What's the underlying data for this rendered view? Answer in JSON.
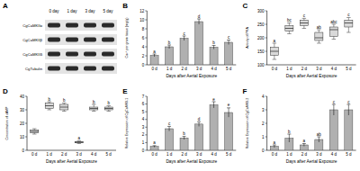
{
  "chart_data": [
    {
      "type": "blot",
      "title": "A",
      "lanes": [
        "0 day",
        "1 day",
        "3 day",
        "5 day"
      ],
      "rows": [
        "CgCaMKIIα",
        "CgCaMKIIβ",
        "CgCaMKIIδ",
        "CgTubulin"
      ]
    },
    {
      "type": "bar",
      "title": "B",
      "x_label": "Days after Aerial Exposure",
      "y_label": "Ca²⁺ per gram tissue (mg/g)",
      "categories": [
        "0 d",
        "1 d",
        "2 d",
        "3 d",
        "4 d",
        "5 d"
      ],
      "values": [
        2.1,
        4.0,
        5.9,
        9.6,
        3.9,
        5.0
      ],
      "errors": [
        0.3,
        0.4,
        0.5,
        0.6,
        0.4,
        0.5
      ],
      "letters": [
        "a",
        "b",
        "c",
        "d",
        "b",
        "c"
      ],
      "color": "#b0b0b0",
      "ylim": [
        0,
        12
      ],
      "yticks": [
        0,
        2,
        4,
        6,
        8,
        10,
        12
      ]
    },
    {
      "type": "box",
      "title": "C",
      "x_label": "Days after Aerial Exposure",
      "y_label": "Activity of PKA",
      "categories": [
        "0 d",
        "1 d",
        "2 d",
        "3 d",
        "4 d",
        "5 d"
      ],
      "stats": [
        [
          120,
          135,
          150,
          165,
          180
        ],
        [
          215,
          225,
          235,
          245,
          255
        ],
        [
          235,
          245,
          255,
          265,
          272
        ],
        [
          180,
          190,
          200,
          220,
          230
        ],
        [
          195,
          205,
          230,
          240,
          250
        ],
        [
          220,
          240,
          255,
          265,
          275
        ]
      ],
      "letters": [
        "a",
        "bc",
        "c",
        "ab",
        "abc",
        "c"
      ],
      "color": "#d9d9d9",
      "ylim": [
        100,
        300
      ],
      "yticks": [
        100,
        150,
        200,
        250,
        300
      ]
    },
    {
      "type": "box",
      "title": "D",
      "x_label": "Days after Aerial Exposure",
      "y_label": "Concentration of cAMP",
      "categories": [
        "0 d",
        "1 d",
        "2 d",
        "3 d",
        "4 d",
        "5 d"
      ],
      "stats": [
        [
          12,
          13,
          14,
          15,
          16
        ],
        [
          30,
          31,
          33,
          35,
          36
        ],
        [
          29,
          30,
          32,
          34,
          35
        ],
        [
          5,
          5.5,
          6,
          6.5,
          7
        ],
        [
          29,
          30,
          31,
          32,
          34
        ],
        [
          29,
          30,
          31,
          32,
          33
        ]
      ],
      "letters": [
        null,
        "b",
        "b",
        "a",
        "b",
        "b"
      ],
      "color": "#d9d9d9",
      "ylim": [
        0,
        40
      ],
      "yticks": [
        0,
        10,
        20,
        30,
        40
      ]
    },
    {
      "type": "bar",
      "title": "E",
      "x_label": "Days after Aerial Exposure",
      "y_label": "Relative Expression of CgCaMKII-1",
      "categories": [
        "0 d",
        "1 d",
        "2 d",
        "3 d",
        "4 d",
        "5 d"
      ],
      "values": [
        0.5,
        2.8,
        1.6,
        3.4,
        5.9,
        4.9
      ],
      "errors": [
        0.1,
        0.3,
        0.2,
        0.3,
        0.4,
        0.6
      ],
      "letters": [
        "a",
        "c",
        "b",
        "d",
        "e",
        "e"
      ],
      "color": "#b0b0b0",
      "ylim": [
        0,
        7
      ],
      "yticks": [
        0,
        1,
        2,
        3,
        4,
        5,
        6,
        7
      ]
    },
    {
      "type": "bar",
      "title": "F",
      "x_label": "Days after Aerial Exposure",
      "y_label": "Relative Expression of CgCaMKII-2",
      "categories": [
        "0 d",
        "1 d",
        "2 d",
        "3 d",
        "4 d",
        "5 d"
      ],
      "values": [
        0.3,
        0.9,
        0.4,
        0.8,
        3.0,
        3.0
      ],
      "errors": [
        0.1,
        0.3,
        0.1,
        0.2,
        0.4,
        0.4
      ],
      "letters": [
        "a",
        "b",
        "a",
        "ab",
        "c",
        "c"
      ],
      "color": "#b0b0b0",
      "ylim": [
        0,
        4
      ],
      "yticks": [
        0,
        1,
        2,
        3,
        4
      ]
    }
  ]
}
